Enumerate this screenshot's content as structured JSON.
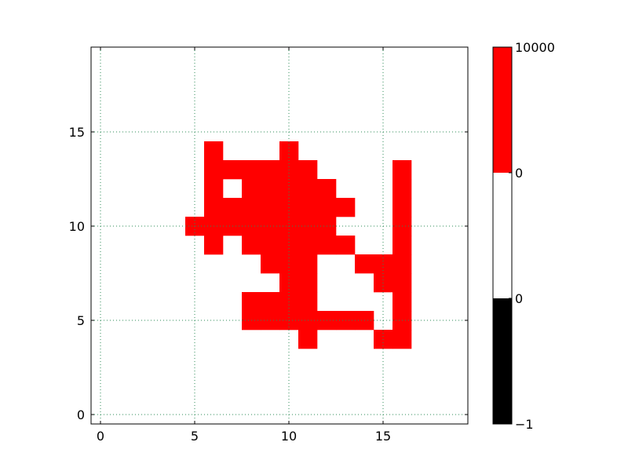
{
  "colors": {
    "background": "#ffffff",
    "axes_edge": "#000000",
    "grid": "#2e8b57",
    "filled_cell": "#ff0000"
  },
  "chart_data": {
    "type": "heatmap",
    "title": "",
    "xlabel": "",
    "ylabel": "",
    "grid": true,
    "grid_style": "dotted",
    "xlim": [
      -0.5,
      19.5
    ],
    "ylim": [
      -0.5,
      19.5
    ],
    "xticks": [
      0,
      5,
      10,
      15
    ],
    "yticks": [
      0,
      5,
      10,
      15
    ],
    "xtick_labels": [
      "0",
      "5",
      "10",
      "15"
    ],
    "ytick_labels": [
      "0",
      "5",
      "10",
      "15"
    ],
    "cell_value": 10000,
    "filled_rows": [
      {
        "y": 4,
        "x": [
          11,
          15,
          16
        ]
      },
      {
        "y": 5,
        "x": [
          8,
          9,
          10,
          11,
          12,
          13,
          14,
          16
        ]
      },
      {
        "y": 6,
        "x": [
          8,
          9,
          10,
          11,
          16
        ]
      },
      {
        "y": 7,
        "x": [
          10,
          11,
          15,
          16
        ]
      },
      {
        "y": 8,
        "x": [
          9,
          10,
          11,
          14,
          15,
          16
        ]
      },
      {
        "y": 9,
        "x": [
          6,
          8,
          9,
          10,
          11,
          12,
          13,
          16
        ]
      },
      {
        "y": 10,
        "x": [
          5,
          6,
          7,
          8,
          9,
          10,
          11,
          12,
          16
        ]
      },
      {
        "y": 11,
        "x": [
          6,
          7,
          8,
          9,
          10,
          11,
          12,
          13,
          16
        ]
      },
      {
        "y": 12,
        "x": [
          6,
          8,
          9,
          10,
          11,
          12,
          16
        ]
      },
      {
        "y": 13,
        "x": [
          6,
          7,
          8,
          9,
          10,
          11,
          16
        ]
      },
      {
        "y": 14,
        "x": [
          6,
          10
        ]
      }
    ],
    "colorbar": {
      "segments": [
        {
          "from": -1,
          "to": 0,
          "color": "#000000"
        },
        {
          "from": 0,
          "to": 0,
          "color": "#ffffff"
        },
        {
          "from": 0,
          "to": 10000,
          "color": "#ff0000"
        }
      ],
      "tick_labels": [
        "−1",
        "0",
        "0",
        "10000"
      ]
    }
  }
}
